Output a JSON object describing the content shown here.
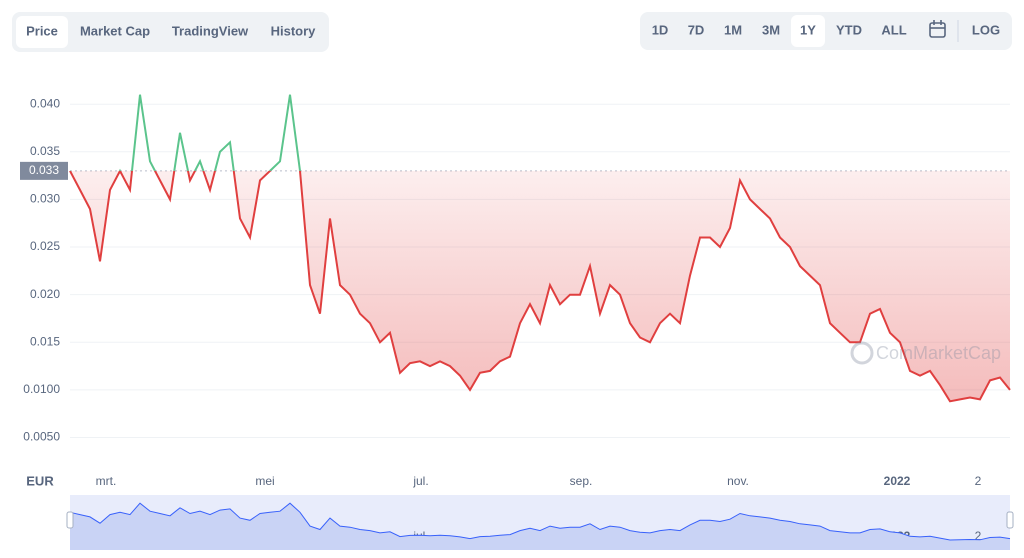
{
  "tabs": [
    "Price",
    "Market Cap",
    "TradingView",
    "History"
  ],
  "ranges": [
    "1D",
    "7D",
    "1M",
    "3M",
    "1Y",
    "YTD",
    "ALL"
  ],
  "log": "LOG",
  "currency": "EUR",
  "watermark": "CoinMarketCap",
  "chart_data": {
    "type": "line",
    "values": [
      0.033,
      0.031,
      0.029,
      0.0235,
      0.031,
      0.033,
      0.031,
      0.041,
      0.034,
      0.032,
      0.03,
      0.037,
      0.032,
      0.034,
      0.031,
      0.035,
      0.036,
      0.028,
      0.026,
      0.032,
      0.033,
      0.034,
      0.041,
      0.033,
      0.021,
      0.018,
      0.028,
      0.021,
      0.02,
      0.018,
      0.017,
      0.015,
      0.016,
      0.0118,
      0.0128,
      0.013,
      0.0125,
      0.013,
      0.0125,
      0.0115,
      0.01,
      0.0118,
      0.012,
      0.013,
      0.0135,
      0.017,
      0.019,
      0.017,
      0.021,
      0.019,
      0.02,
      0.02,
      0.023,
      0.018,
      0.021,
      0.02,
      0.017,
      0.0155,
      0.015,
      0.017,
      0.018,
      0.017,
      0.022,
      0.026,
      0.026,
      0.025,
      0.027,
      0.032,
      0.03,
      0.029,
      0.028,
      0.026,
      0.025,
      0.023,
      0.022,
      0.021,
      0.017,
      0.016,
      0.015,
      0.015,
      0.018,
      0.0185,
      0.016,
      0.015,
      0.012,
      0.0115,
      0.012,
      0.0105,
      0.0088,
      0.009,
      0.0092,
      0.009,
      0.011,
      0.0113,
      0.01
    ],
    "xlim": [
      0,
      94
    ],
    "xticks": [
      {
        "value": 3.6,
        "label": "mrt."
      },
      {
        "value": 19.5,
        "label": "mei"
      },
      {
        "value": 35.1,
        "label": "jul."
      },
      {
        "value": 51.1,
        "label": "sep."
      },
      {
        "value": 66.8,
        "label": "nov."
      },
      {
        "value": 82.7,
        "label": "2022"
      },
      {
        "value": 90.8,
        "label": "2"
      }
    ],
    "ylim": [
      0.0018,
      0.0438
    ],
    "yticks": [
      {
        "value": 0.005,
        "label": "0.0050"
      },
      {
        "value": 0.01,
        "label": "0.0100"
      },
      0.015,
      {
        "value": 0.02,
        "label": "0.020"
      },
      0.025,
      {
        "value": 0.03,
        "label": "0.030"
      },
      0.035,
      {
        "value": 0.04,
        "label": "0.040"
      }
    ],
    "reference": {
      "value": 0.033,
      "label": "0.033"
    },
    "up_color": "#5bc48c",
    "down_color": "#e03f3f",
    "grid": true
  }
}
